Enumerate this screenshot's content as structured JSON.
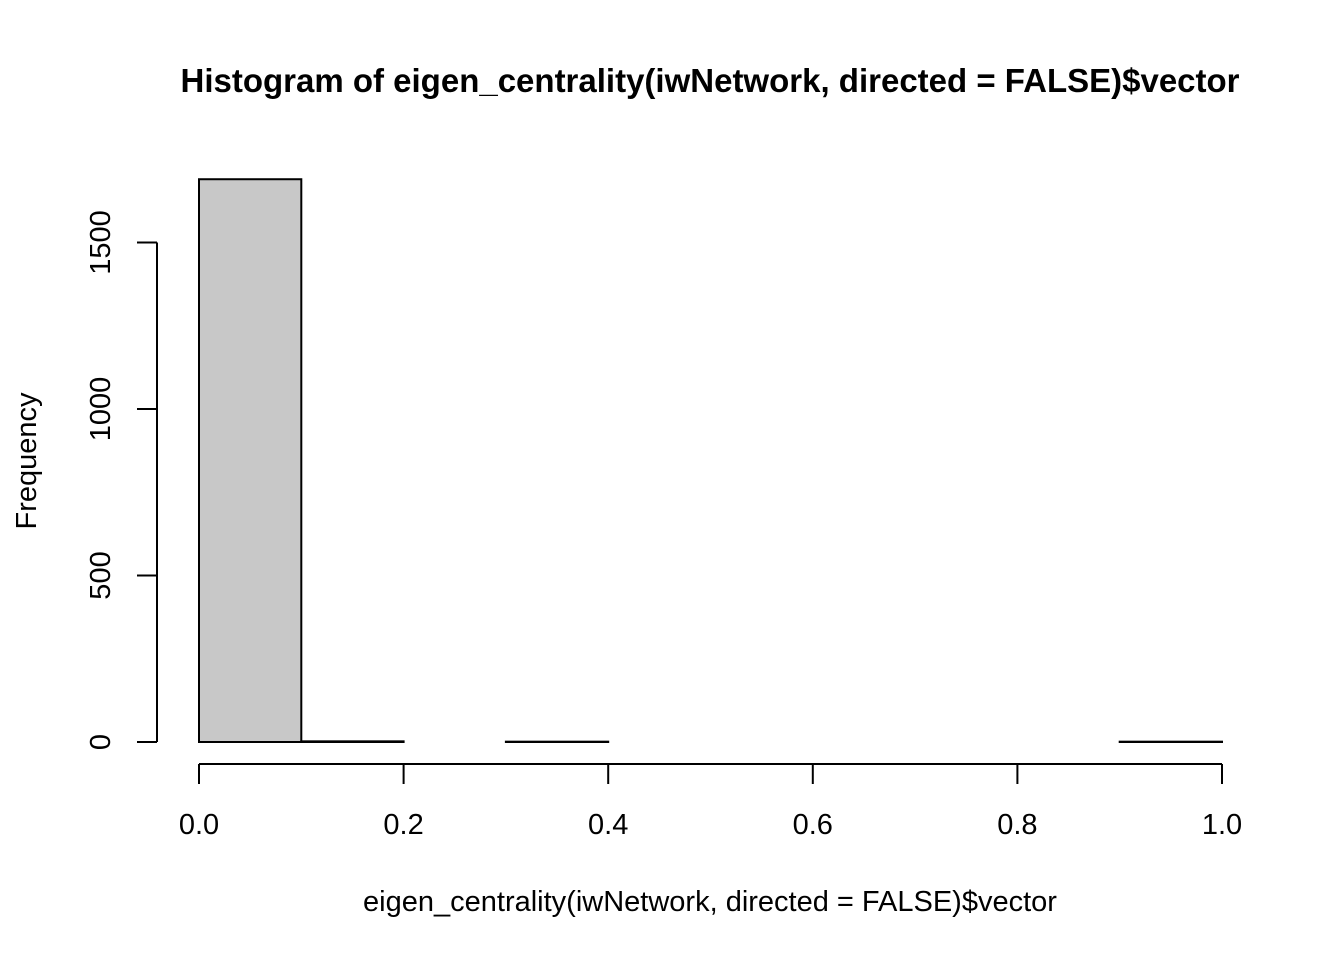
{
  "chart_data": {
    "type": "bar",
    "title": "Histogram of eigen_centrality(iwNetwork, directed = FALSE)$vector",
    "xlabel": "eigen_centrality(iwNetwork, directed = FALSE)$vector",
    "ylabel": "Frequency",
    "bins": [
      {
        "x0": 0.0,
        "x1": 0.1,
        "count": 1690
      },
      {
        "x0": 0.1,
        "x1": 0.2,
        "count": 2
      },
      {
        "x0": 0.2,
        "x1": 0.3,
        "count": 0
      },
      {
        "x0": 0.3,
        "x1": 0.4,
        "count": 1
      },
      {
        "x0": 0.4,
        "x1": 0.5,
        "count": 0
      },
      {
        "x0": 0.5,
        "x1": 0.6,
        "count": 0
      },
      {
        "x0": 0.6,
        "x1": 0.7,
        "count": 0
      },
      {
        "x0": 0.7,
        "x1": 0.8,
        "count": 0
      },
      {
        "x0": 0.8,
        "x1": 0.9,
        "count": 0
      },
      {
        "x0": 0.9,
        "x1": 1.0,
        "count": 1
      }
    ],
    "x_ticks": [
      {
        "value": 0.0,
        "label": "0.0"
      },
      {
        "value": 0.2,
        "label": "0.2"
      },
      {
        "value": 0.4,
        "label": "0.4"
      },
      {
        "value": 0.6,
        "label": "0.6"
      },
      {
        "value": 0.8,
        "label": "0.8"
      },
      {
        "value": 1.0,
        "label": "1.0"
      }
    ],
    "y_ticks": [
      {
        "value": 0,
        "label": "0"
      },
      {
        "value": 500,
        "label": "500"
      },
      {
        "value": 1000,
        "label": "1000"
      },
      {
        "value": 1500,
        "label": "1500"
      }
    ],
    "xlim": [
      0,
      1
    ],
    "ylim": [
      0,
      1690
    ],
    "grid": false,
    "bar_color": "#c8c8c8",
    "edge_color": "#000000"
  }
}
